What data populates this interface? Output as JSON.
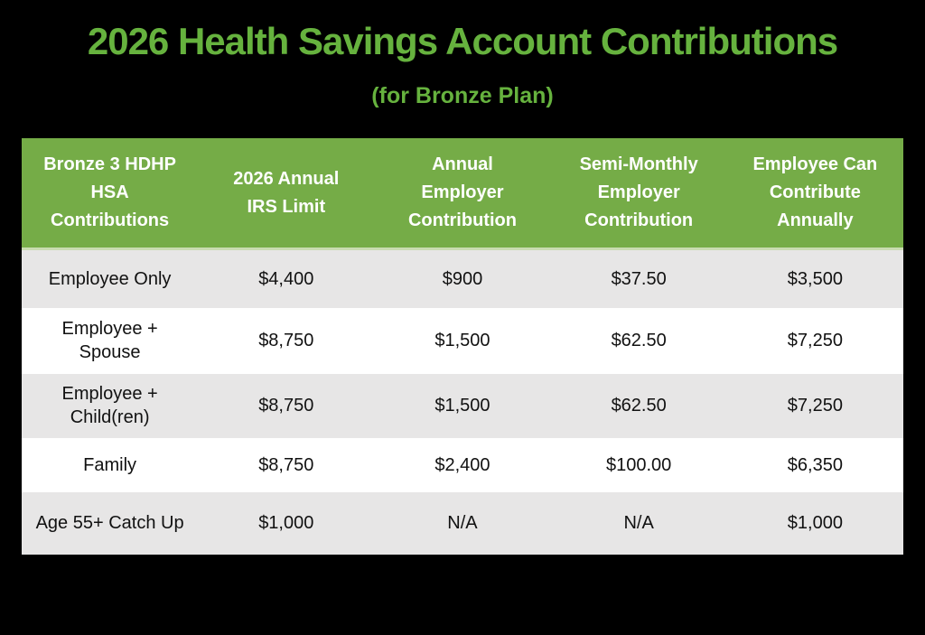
{
  "title": {
    "text": "2026 Health Savings Account Contributions",
    "subtitle": "(for Bronze Plan)"
  },
  "colors": {
    "background": "#000000",
    "title_green": "#66B23E",
    "header_green": "#75AC47",
    "header_divider": "#C9DCB1",
    "header_text": "#FFFFFF",
    "row_gray": "#E7E6E6",
    "row_white": "#FFFFFF",
    "data_text": "#111111"
  },
  "table": {
    "columns": [
      "Bronze 3 HDHP\nHSA\nContributions",
      "2026 Annual\nIRS Limit",
      "Annual\nEmployer\nContribution",
      "Semi-Monthly\nEmployer\nContribution",
      "Employee Can\nContribute\nAnnually"
    ],
    "rows": [
      {
        "label": "Employee Only",
        "values": [
          "$4,400",
          "$900",
          "$37.50",
          "$3,500"
        ]
      },
      {
        "label": "Employee +\nSpouse",
        "values": [
          "$8,750",
          "$1,500",
          "$62.50",
          "$7,250"
        ]
      },
      {
        "label": "Employee +\nChild(ren)",
        "values": [
          "$8,750",
          "$1,500",
          "$62.50",
          "$7,250"
        ]
      },
      {
        "label": "Family",
        "values": [
          "$8,750",
          "$2,400",
          "$100.00",
          "$6,350"
        ]
      },
      {
        "label": "Age 55+ Catch Up",
        "values": [
          "$1,000",
          "N/A",
          "N/A",
          "$1,000"
        ]
      }
    ]
  }
}
